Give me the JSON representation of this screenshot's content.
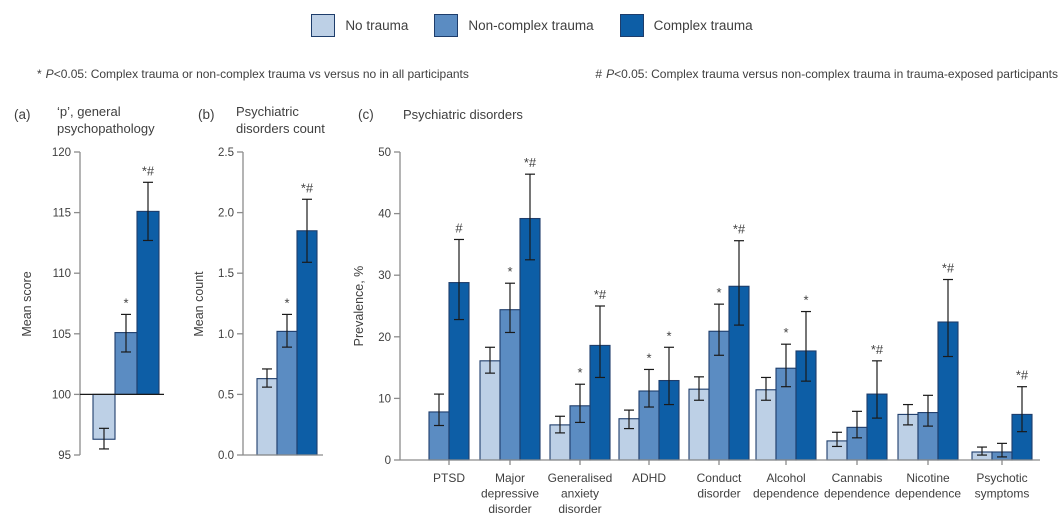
{
  "legend": [
    {
      "label": "No trauma",
      "color": "#bdd0e6"
    },
    {
      "label": "Non-complex trauma",
      "color": "#5b8cc2"
    },
    {
      "label": "Complex trauma",
      "color": "#0d5ea6"
    }
  ],
  "footnotes": {
    "left": {
      "marker": "*",
      "p": "P",
      "rest": "<0.05: Complex trauma or non-complex trauma vs versus no in all participants"
    },
    "right": {
      "marker": "#",
      "p": "P",
      "rest": "<0.05: Complex trauma versus non-complex trauma in trauma-exposed participants"
    }
  },
  "chart_data": [
    {
      "id": "a",
      "type": "bar",
      "panel_letter": "(a)",
      "title": "‘p’, general psychopathology",
      "title_lines": [
        "‘p’, general",
        "psychopathology"
      ],
      "ylabel": "Mean score",
      "ylim": [
        95,
        120
      ],
      "yticks": [
        95,
        100,
        105,
        110,
        115,
        120
      ],
      "ytick_labels": [
        "95",
        "100",
        "105",
        "110",
        "115",
        "120"
      ],
      "baseline": 100,
      "bars": [
        {
          "series": "No trauma",
          "value": 96.3,
          "err_low": 95.5,
          "err_high": 97.2,
          "sig": ""
        },
        {
          "series": "Non-complex trauma",
          "value": 105.1,
          "err_low": 103.5,
          "err_high": 106.6,
          "sig": "*"
        },
        {
          "series": "Complex trauma",
          "value": 115.1,
          "err_low": 112.7,
          "err_high": 117.5,
          "sig": "*#"
        }
      ]
    },
    {
      "id": "b",
      "type": "bar",
      "panel_letter": "(b)",
      "title": "Psychiatric disorders count",
      "title_lines": [
        "Psychiatric",
        "disorders count"
      ],
      "ylabel": "Mean count",
      "ylim": [
        0,
        2.5
      ],
      "yticks": [
        0,
        0.5,
        1,
        1.5,
        2,
        2.5
      ],
      "ytick_labels": [
        "0.0",
        "0.5",
        "1.0",
        "1.5",
        "2.0",
        "2.5"
      ],
      "baseline": 0,
      "bars": [
        {
          "series": "No trauma",
          "value": 0.63,
          "err_low": 0.56,
          "err_high": 0.71,
          "sig": ""
        },
        {
          "series": "Non-complex trauma",
          "value": 1.02,
          "err_low": 0.89,
          "err_high": 1.16,
          "sig": "*"
        },
        {
          "series": "Complex trauma",
          "value": 1.85,
          "err_low": 1.59,
          "err_high": 2.11,
          "sig": "*#"
        }
      ]
    },
    {
      "id": "c",
      "type": "bar",
      "panel_letter": "(c)",
      "title": "Psychiatric disorders",
      "title_lines": [
        "Psychiatric disorders"
      ],
      "ylabel": "Prevalence, %",
      "ylim": [
        0,
        50
      ],
      "yticks": [
        0,
        10,
        20,
        30,
        40,
        50
      ],
      "ytick_labels": [
        "0",
        "10",
        "20",
        "30",
        "40",
        "50"
      ],
      "baseline": 0,
      "groups": [
        {
          "category": "PTSD",
          "bars": [
            {
              "series": "Non-complex trauma",
              "value": 7.8,
              "err_low": 5.6,
              "err_high": 10.7,
              "sig": ""
            },
            {
              "series": "Complex trauma",
              "value": 28.8,
              "err_low": 22.8,
              "err_high": 35.8,
              "sig": "#"
            }
          ]
        },
        {
          "category": "Major depressive disorder",
          "bars": [
            {
              "series": "No trauma",
              "value": 16.1,
              "err_low": 14.1,
              "err_high": 18.3,
              "sig": ""
            },
            {
              "series": "Non-complex trauma",
              "value": 24.4,
              "err_low": 20.7,
              "err_high": 28.7,
              "sig": "*"
            },
            {
              "series": "Complex trauma",
              "value": 39.2,
              "err_low": 32.5,
              "err_high": 46.4,
              "sig": "*#"
            }
          ]
        },
        {
          "category": "Generalised anxiety disorder",
          "bars": [
            {
              "series": "No trauma",
              "value": 5.7,
              "err_low": 4.4,
              "err_high": 7.1,
              "sig": ""
            },
            {
              "series": "Non-complex trauma",
              "value": 8.8,
              "err_low": 6.1,
              "err_high": 12.3,
              "sig": "*"
            },
            {
              "series": "Complex trauma",
              "value": 18.6,
              "err_low": 13.4,
              "err_high": 25.0,
              "sig": "*#"
            }
          ]
        },
        {
          "category": "ADHD",
          "bars": [
            {
              "series": "No trauma",
              "value": 6.7,
              "err_low": 5.1,
              "err_high": 8.1,
              "sig": ""
            },
            {
              "series": "Non-complex trauma",
              "value": 11.2,
              "err_low": 8.6,
              "err_high": 14.7,
              "sig": "*"
            },
            {
              "series": "Complex trauma",
              "value": 12.9,
              "err_low": 9.0,
              "err_high": 18.3,
              "sig": "*"
            }
          ]
        },
        {
          "category": "Conduct disorder",
          "bars": [
            {
              "series": "No trauma",
              "value": 11.5,
              "err_low": 9.7,
              "err_high": 13.5,
              "sig": ""
            },
            {
              "series": "Non-complex trauma",
              "value": 20.9,
              "err_low": 17.0,
              "err_high": 25.3,
              "sig": "*"
            },
            {
              "series": "Complex trauma",
              "value": 28.2,
              "err_low": 21.9,
              "err_high": 35.6,
              "sig": "*#"
            }
          ]
        },
        {
          "category": "Alcohol dependence",
          "bars": [
            {
              "series": "No trauma",
              "value": 11.4,
              "err_low": 9.7,
              "err_high": 13.4,
              "sig": ""
            },
            {
              "series": "Non-complex trauma",
              "value": 14.9,
              "err_low": 11.9,
              "err_high": 18.8,
              "sig": "*"
            },
            {
              "series": "Complex trauma",
              "value": 17.7,
              "err_low": 12.8,
              "err_high": 24.1,
              "sig": "*"
            }
          ]
        },
        {
          "category": "Cannabis dependence",
          "bars": [
            {
              "series": "No trauma",
              "value": 3.1,
              "err_low": 2.2,
              "err_high": 4.5,
              "sig": ""
            },
            {
              "series": "Non-complex trauma",
              "value": 5.3,
              "err_low": 3.6,
              "err_high": 7.9,
              "sig": ""
            },
            {
              "series": "Complex trauma",
              "value": 10.7,
              "err_low": 6.8,
              "err_high": 16.1,
              "sig": "*#"
            }
          ]
        },
        {
          "category": "Nicotine dependence",
          "bars": [
            {
              "series": "No trauma",
              "value": 7.4,
              "err_low": 5.7,
              "err_high": 9.0,
              "sig": ""
            },
            {
              "series": "Non-complex trauma",
              "value": 7.7,
              "err_low": 5.5,
              "err_high": 10.5,
              "sig": ""
            },
            {
              "series": "Complex trauma",
              "value": 22.4,
              "err_low": 16.8,
              "err_high": 29.3,
              "sig": "*#"
            }
          ]
        },
        {
          "category": "Psychotic symptoms",
          "bars": [
            {
              "series": "No trauma",
              "value": 1.3,
              "err_low": 0.8,
              "err_high": 2.1,
              "sig": ""
            },
            {
              "series": "Non-complex trauma",
              "value": 1.3,
              "err_low": 0.5,
              "err_high": 2.7,
              "sig": ""
            },
            {
              "series": "Complex trauma",
              "value": 7.4,
              "err_low": 4.6,
              "err_high": 11.9,
              "sig": "*#"
            }
          ]
        }
      ]
    }
  ]
}
